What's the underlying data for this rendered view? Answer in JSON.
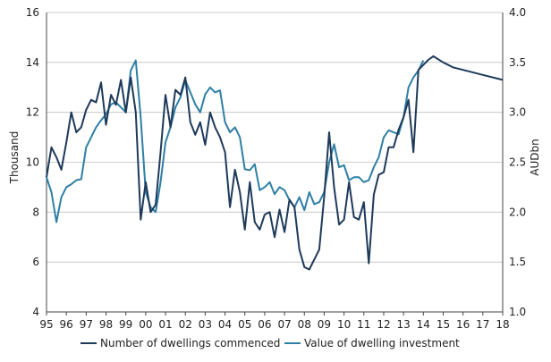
{
  "chart_data": {
    "type": "line",
    "x_tick_labels": [
      "95",
      "96",
      "97",
      "98",
      "99",
      "00",
      "01",
      "02",
      "03",
      "04",
      "05",
      "06",
      "07",
      "08",
      "09",
      "10",
      "11",
      "12",
      "13",
      "14",
      "15",
      "16",
      "17",
      "18"
    ],
    "xlim": [
      1995,
      2018
    ],
    "y_left": {
      "label": "Thousand",
      "ylim": [
        4,
        16
      ],
      "ticks": [
        4,
        6,
        8,
        10,
        12,
        14,
        16
      ]
    },
    "y_right": {
      "label": "AUDbn",
      "ylim": [
        1.0,
        4.0
      ],
      "ticks": [
        "1.0",
        "1.5",
        "2.0",
        "2.5",
        "3.0",
        "3.5",
        "4.0"
      ]
    },
    "grid": true,
    "legend_position": "bottom",
    "colors": {
      "dwellings": "#1e3a5a",
      "investment": "#2e7fa5",
      "grid": "#bfbfbf",
      "axis": "#444444"
    },
    "series": [
      {
        "name": "Number of dwellings commenced",
        "axis": "left",
        "points": [
          [
            1995.0,
            9.4
          ],
          [
            1995.25,
            10.6
          ],
          [
            1995.5,
            10.2
          ],
          [
            1995.75,
            9.7
          ],
          [
            1996.0,
            10.8
          ],
          [
            1996.25,
            12.0
          ],
          [
            1996.5,
            11.2
          ],
          [
            1996.75,
            11.4
          ],
          [
            1997.0,
            12.1
          ],
          [
            1997.25,
            12.5
          ],
          [
            1997.5,
            12.4
          ],
          [
            1997.75,
            13.2
          ],
          [
            1998.0,
            11.5
          ],
          [
            1998.25,
            12.7
          ],
          [
            1998.5,
            12.3
          ],
          [
            1998.75,
            13.3
          ],
          [
            1999.0,
            12.0
          ],
          [
            1999.25,
            13.4
          ],
          [
            1999.5,
            12.0
          ],
          [
            1999.75,
            7.7
          ],
          [
            2000.0,
            9.2
          ],
          [
            2000.25,
            8.0
          ],
          [
            2000.5,
            8.3
          ],
          [
            2000.75,
            10.4
          ],
          [
            2001.0,
            12.7
          ],
          [
            2001.25,
            11.4
          ],
          [
            2001.5,
            12.9
          ],
          [
            2001.75,
            12.7
          ],
          [
            2002.0,
            13.4
          ],
          [
            2002.25,
            11.6
          ],
          [
            2002.5,
            11.1
          ],
          [
            2002.75,
            11.6
          ],
          [
            2003.0,
            10.7
          ],
          [
            2003.25,
            12.0
          ],
          [
            2003.5,
            11.4
          ],
          [
            2003.75,
            11.0
          ],
          [
            2004.0,
            10.4
          ],
          [
            2004.25,
            8.2
          ],
          [
            2004.5,
            9.7
          ],
          [
            2004.75,
            8.8
          ],
          [
            2005.0,
            7.3
          ],
          [
            2005.25,
            9.2
          ],
          [
            2005.5,
            7.6
          ],
          [
            2005.75,
            7.3
          ],
          [
            2006.0,
            7.9
          ],
          [
            2006.25,
            8.0
          ],
          [
            2006.5,
            7.0
          ],
          [
            2006.75,
            8.1
          ],
          [
            2007.0,
            7.2
          ],
          [
            2007.25,
            8.5
          ],
          [
            2007.5,
            8.2
          ],
          [
            2007.75,
            6.5
          ],
          [
            2008.0,
            5.8
          ],
          [
            2008.25,
            5.7
          ],
          [
            2008.5,
            6.1
          ],
          [
            2008.75,
            6.5
          ],
          [
            2009.0,
            8.6
          ],
          [
            2009.25,
            11.2
          ],
          [
            2009.5,
            9.0
          ],
          [
            2009.75,
            7.5
          ],
          [
            2010.0,
            7.7
          ],
          [
            2010.25,
            9.2
          ],
          [
            2010.5,
            7.8
          ],
          [
            2010.75,
            7.7
          ],
          [
            2011.0,
            8.4
          ],
          [
            2011.25,
            5.95
          ],
          [
            2011.5,
            8.7
          ],
          [
            2011.75,
            9.5
          ],
          [
            2012.0,
            9.6
          ],
          [
            2012.25,
            10.6
          ],
          [
            2012.5,
            10.6
          ],
          [
            2012.75,
            11.3
          ],
          [
            2013.0,
            11.8
          ],
          [
            2013.25,
            12.5
          ],
          [
            2013.5,
            10.4
          ],
          [
            2013.75,
            13.7
          ],
          [
            2014.0,
            13.9
          ],
          [
            2014.25,
            14.1
          ],
          [
            2014.5,
            14.25
          ],
          [
            2015.0,
            14.0
          ],
          [
            2015.5,
            13.8
          ],
          [
            2016.0,
            13.7
          ],
          [
            2017.0,
            13.5
          ],
          [
            2018.0,
            13.3
          ]
        ]
      },
      {
        "name": "Value of dwelling investment",
        "axis": "right",
        "points": [
          [
            1995.0,
            2.35
          ],
          [
            1995.25,
            2.2
          ],
          [
            1995.5,
            1.9
          ],
          [
            1995.75,
            2.15
          ],
          [
            1996.0,
            2.25
          ],
          [
            1996.25,
            2.28
          ],
          [
            1996.5,
            2.32
          ],
          [
            1996.75,
            2.33
          ],
          [
            1997.0,
            2.65
          ],
          [
            1997.25,
            2.75
          ],
          [
            1997.5,
            2.85
          ],
          [
            1997.75,
            2.92
          ],
          [
            1998.0,
            2.98
          ],
          [
            1998.25,
            3.08
          ],
          [
            1998.5,
            3.1
          ],
          [
            1998.75,
            3.05
          ],
          [
            1999.0,
            3.0
          ],
          [
            1999.25,
            3.42
          ],
          [
            1999.5,
            3.52
          ],
          [
            1999.75,
            2.95
          ],
          [
            2000.0,
            2.2
          ],
          [
            2000.25,
            2.05
          ],
          [
            2000.5,
            2.0
          ],
          [
            2000.75,
            2.3
          ],
          [
            2001.0,
            2.7
          ],
          [
            2001.25,
            2.85
          ],
          [
            2001.5,
            3.05
          ],
          [
            2001.75,
            3.15
          ],
          [
            2002.0,
            3.32
          ],
          [
            2002.25,
            3.2
          ],
          [
            2002.5,
            3.08
          ],
          [
            2002.75,
            3.0
          ],
          [
            2003.0,
            3.18
          ],
          [
            2003.25,
            3.25
          ],
          [
            2003.5,
            3.2
          ],
          [
            2003.75,
            3.22
          ],
          [
            2004.0,
            2.9
          ],
          [
            2004.25,
            2.8
          ],
          [
            2004.5,
            2.85
          ],
          [
            2004.75,
            2.75
          ],
          [
            2005.0,
            2.43
          ],
          [
            2005.25,
            2.42
          ],
          [
            2005.5,
            2.48
          ],
          [
            2005.75,
            2.22
          ],
          [
            2006.0,
            2.25
          ],
          [
            2006.25,
            2.3
          ],
          [
            2006.5,
            2.18
          ],
          [
            2006.75,
            2.25
          ],
          [
            2007.0,
            2.22
          ],
          [
            2007.25,
            2.12
          ],
          [
            2007.5,
            2.05
          ],
          [
            2007.75,
            2.15
          ],
          [
            2008.0,
            2.02
          ],
          [
            2008.25,
            2.2
          ],
          [
            2008.5,
            2.08
          ],
          [
            2008.75,
            2.1
          ],
          [
            2009.0,
            2.2
          ],
          [
            2009.25,
            2.5
          ],
          [
            2009.5,
            2.68
          ],
          [
            2009.75,
            2.45
          ],
          [
            2010.0,
            2.47
          ],
          [
            2010.25,
            2.32
          ],
          [
            2010.5,
            2.35
          ],
          [
            2010.75,
            2.35
          ],
          [
            2011.0,
            2.3
          ],
          [
            2011.25,
            2.32
          ],
          [
            2011.5,
            2.45
          ],
          [
            2011.75,
            2.55
          ],
          [
            2012.0,
            2.75
          ],
          [
            2012.25,
            2.82
          ],
          [
            2012.5,
            2.8
          ],
          [
            2012.75,
            2.78
          ],
          [
            2013.0,
            2.95
          ],
          [
            2013.25,
            3.25
          ],
          [
            2013.5,
            3.35
          ],
          [
            2013.75,
            3.42
          ],
          [
            2014.0,
            3.52
          ]
        ]
      }
    ]
  }
}
